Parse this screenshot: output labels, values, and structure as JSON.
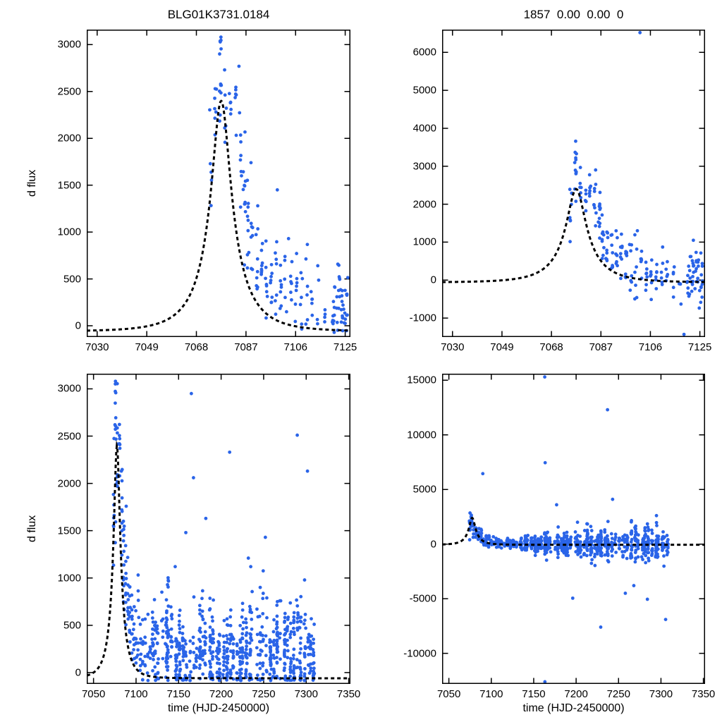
{
  "chart_data": [
    {
      "id": "top-left",
      "type": "scatter",
      "title": "BLG01K3731.0184",
      "xlabel": "",
      "ylabel": "d flux",
      "xlim": [
        7026,
        7127
      ],
      "ylim": [
        -120,
        3160
      ],
      "xticks": [
        7030,
        7049,
        7068,
        7087,
        7106,
        7125
      ],
      "yticks": [
        0,
        500,
        1000,
        1500,
        2000,
        2500,
        3000
      ],
      "point_color": "#2a64e8",
      "curve_color": "#000000",
      "curve_style": "dashed",
      "legend": "none",
      "grid": false,
      "model": {
        "type": "paczynski",
        "t0": 7077.5,
        "tE": 15,
        "u0": 0.25,
        "fs": 795,
        "fb": -60,
        "peak_flux": 2400
      },
      "seed": 7,
      "clamp": [
        -85,
        3085
      ],
      "clusters": [
        [
          7073.6,
          0.5,
          5,
          1650,
          280
        ],
        [
          7075.3,
          0.4,
          7,
          2150,
          350
        ],
        [
          7077.2,
          0.4,
          11,
          2620,
          290
        ],
        [
          7079.1,
          0.4,
          6,
          2250,
          280
        ],
        [
          7081.0,
          0.4,
          5,
          2330,
          180
        ],
        [
          7083.0,
          0.4,
          6,
          2480,
          140
        ],
        [
          7084.8,
          0.5,
          9,
          1950,
          320
        ],
        [
          7086.3,
          0.5,
          11,
          1500,
          430
        ],
        [
          7087.8,
          0.4,
          9,
          1080,
          300
        ],
        [
          7089.3,
          0.4,
          8,
          960,
          260
        ],
        [
          7091.2,
          0.4,
          8,
          780,
          250
        ],
        [
          7093.0,
          0.4,
          8,
          620,
          240
        ],
        [
          7094.8,
          0.4,
          8,
          530,
          250
        ],
        [
          7096.6,
          0.4,
          8,
          470,
          270
        ],
        [
          7098.4,
          0.4,
          7,
          430,
          300
        ],
        [
          7100.2,
          0.4,
          7,
          380,
          230
        ],
        [
          7102.2,
          0.4,
          5,
          560,
          300
        ],
        [
          7104.2,
          0.4,
          6,
          300,
          200
        ],
        [
          7106.2,
          0.4,
          7,
          280,
          210
        ],
        [
          7108.2,
          0.4,
          6,
          260,
          180
        ],
        [
          7110.2,
          0.4,
          6,
          300,
          220
        ],
        [
          7112.2,
          0.4,
          5,
          200,
          160
        ],
        [
          7114.6,
          0.4,
          4,
          240,
          190
        ],
        [
          7117.0,
          0.4,
          4,
          160,
          130
        ],
        [
          7120.6,
          0.7,
          11,
          250,
          200
        ],
        [
          7122.2,
          0.7,
          12,
          270,
          215
        ],
        [
          7123.8,
          0.7,
          12,
          245,
          200
        ],
        [
          7125.3,
          0.7,
          12,
          225,
          195
        ]
      ],
      "outliers": [
        [
          7077.4,
          3080
        ],
        [
          7076.9,
          2900
        ],
        [
          7099.0,
          1450
        ],
        [
          7103.3,
          930
        ],
        [
          7091.5,
          1280
        ]
      ]
    },
    {
      "id": "top-right",
      "type": "scatter",
      "title": "1857  0.00  0.00  0",
      "xlabel": "",
      "ylabel": "",
      "xlim": [
        7026,
        7127
      ],
      "ylim": [
        -1500,
        6600
      ],
      "xticks": [
        7030,
        7049,
        7068,
        7087,
        7106,
        7125
      ],
      "yticks": [
        -1000,
        0,
        1000,
        2000,
        3000,
        4000,
        5000,
        6000
      ],
      "point_color": "#2a64e8",
      "curve_color": "#000000",
      "curve_style": "dashed",
      "legend": "none",
      "grid": false,
      "model": {
        "type": "paczynski",
        "t0": 7077.5,
        "tE": 15,
        "u0": 0.25,
        "fs": 795,
        "fb": -60,
        "peak_flux": 2400
      },
      "seed": 23,
      "clamp": [
        -1460,
        6560
      ],
      "clusters": [
        [
          7075.4,
          0.4,
          7,
          2350,
          450
        ],
        [
          7077.2,
          0.4,
          11,
          2950,
          380
        ],
        [
          7079.1,
          0.4,
          6,
          2400,
          350
        ],
        [
          7081.0,
          0.4,
          5,
          2450,
          220
        ],
        [
          7083.0,
          0.4,
          6,
          2500,
          200
        ],
        [
          7084.8,
          0.5,
          9,
          2000,
          380
        ],
        [
          7086.3,
          0.5,
          11,
          1550,
          450
        ],
        [
          7087.8,
          0.4,
          9,
          1150,
          350
        ],
        [
          7089.3,
          0.4,
          8,
          1000,
          300
        ],
        [
          7091.2,
          0.4,
          8,
          800,
          300
        ],
        [
          7093.0,
          0.4,
          8,
          620,
          280
        ],
        [
          7094.8,
          0.4,
          8,
          520,
          300
        ],
        [
          7096.6,
          0.4,
          8,
          450,
          320
        ],
        [
          7098.4,
          0.4,
          7,
          420,
          380
        ],
        [
          7100.4,
          0.4,
          7,
          500,
          550
        ],
        [
          7102.4,
          0.4,
          6,
          300,
          300
        ],
        [
          7104.4,
          0.4,
          7,
          160,
          280
        ],
        [
          7106.4,
          0.4,
          7,
          130,
          300
        ],
        [
          7108.4,
          0.4,
          6,
          80,
          280
        ],
        [
          7110.4,
          0.4,
          6,
          130,
          320
        ],
        [
          7112.4,
          0.4,
          5,
          20,
          240
        ],
        [
          7115.0,
          0.4,
          5,
          90,
          330
        ],
        [
          7117.4,
          0.4,
          4,
          -80,
          260
        ],
        [
          7120.6,
          0.7,
          11,
          90,
          330
        ],
        [
          7122.2,
          0.7,
          12,
          90,
          380
        ],
        [
          7123.8,
          0.7,
          12,
          40,
          380
        ],
        [
          7125.3,
          0.7,
          12,
          10,
          420
        ]
      ],
      "outliers": [
        [
          7102.0,
          6520
        ],
        [
          7077.3,
          3660
        ],
        [
          7118.9,
          -1430
        ],
        [
          7101.0,
          1300
        ],
        [
          7122.5,
          1050
        ]
      ]
    },
    {
      "id": "bottom-left",
      "type": "scatter",
      "title": "",
      "xlabel": "time (HJD-2450000)",
      "ylabel": "d flux",
      "xlim": [
        7042,
        7352
      ],
      "ylim": [
        -120,
        3160
      ],
      "xticks": [
        7050,
        7100,
        7150,
        7200,
        7250,
        7300,
        7350
      ],
      "yticks": [
        0,
        500,
        1000,
        1500,
        2000,
        2500,
        3000
      ],
      "point_color": "#2a64e8",
      "curve_color": "#000000",
      "curve_style": "dashed",
      "legend": "none",
      "grid": false,
      "model": {
        "type": "paczynski",
        "t0": 7077.5,
        "tE": 15,
        "u0": 0.25,
        "fs": 795,
        "fb": -60,
        "peak_flux": 2400
      },
      "seed": 101,
      "clamp": [
        -85,
        3085
      ],
      "clusters": [
        [
          7073.8,
          0.5,
          8,
          1850,
          420
        ],
        [
          7076.0,
          0.5,
          12,
          2480,
          380
        ],
        [
          7078.2,
          0.5,
          8,
          2200,
          350
        ],
        [
          7080.6,
          0.5,
          7,
          2300,
          220
        ],
        [
          7083.2,
          0.6,
          9,
          1950,
          350
        ],
        [
          7085.6,
          0.6,
          12,
          1400,
          450
        ],
        [
          7088.0,
          0.6,
          10,
          1000,
          320
        ],
        [
          7090.4,
          0.6,
          9,
          780,
          280
        ],
        [
          7092.8,
          0.6,
          9,
          600,
          260
        ],
        [
          7095.2,
          0.6,
          8,
          480,
          280
        ],
        [
          7097.6,
          0.6,
          8,
          420,
          290
        ],
        [
          7100.0,
          0.6,
          7,
          380,
          260
        ],
        [
          7102.6,
          0.6,
          7,
          420,
          320
        ],
        [
          7105.2,
          0.6,
          7,
          280,
          220
        ],
        [
          7108.0,
          0.6,
          7,
          260,
          215
        ],
        [
          7110.8,
          0.6,
          6,
          280,
          225
        ],
        [
          7113.6,
          0.6,
          5,
          220,
          180
        ],
        [
          7116.4,
          0.6,
          5,
          180,
          160
        ],
        [
          7119.5,
          0.9,
          14,
          235,
          210
        ],
        [
          7122.5,
          0.9,
          16,
          235,
          210
        ],
        [
          7125.5,
          0.9,
          14,
          220,
          200
        ]
      ],
      "band": {
        "x0": 7131,
        "x1": 7309,
        "nights": 46,
        "night_w": 0.85,
        "nmin": 6,
        "nmax": 28,
        "y": 255,
        "ys": 250,
        "ymin": -85,
        "ymax": 1620
      },
      "outliers": [
        [
          7075.8,
          3080
        ],
        [
          7075.2,
          2620
        ],
        [
          7165.0,
          2950
        ],
        [
          7167.5,
          2060
        ],
        [
          7210.0,
          2330
        ],
        [
          7289.5,
          2510
        ],
        [
          7301.5,
          2130
        ],
        [
          7182.0,
          1630
        ],
        [
          7158.5,
          1480
        ],
        [
          7146.0,
          1120
        ],
        [
          7252.0,
          1430
        ],
        [
          7232.0,
          1210
        ]
      ]
    },
    {
      "id": "bottom-right",
      "type": "scatter",
      "title": "",
      "xlabel": "time (HJD-2450000)",
      "ylabel": "",
      "xlim": [
        7042,
        7352
      ],
      "ylim": [
        -12800,
        15600
      ],
      "xticks": [
        7050,
        7100,
        7150,
        7200,
        7250,
        7300,
        7350
      ],
      "yticks": [
        -10000,
        -5000,
        0,
        5000,
        10000,
        15000
      ],
      "point_color": "#2a64e8",
      "curve_color": "#000000",
      "curve_style": "dashed",
      "legend": "none",
      "grid": false,
      "model": {
        "type": "paczynski",
        "t0": 7077.5,
        "tE": 15,
        "u0": 0.25,
        "fs": 795,
        "fb": -60,
        "peak_flux": 2400
      },
      "seed": 2024,
      "clamp": [
        -12700,
        15400
      ],
      "clusters": [
        [
          7074.5,
          0.5,
          9,
          1700,
          600
        ],
        [
          7076.5,
          0.5,
          10,
          2150,
          500
        ],
        [
          7079.0,
          0.5,
          8,
          1500,
          450
        ],
        [
          7082.0,
          0.6,
          8,
          1100,
          380
        ],
        [
          7085.0,
          0.6,
          10,
          800,
          380
        ],
        [
          7088.0,
          0.6,
          8,
          600,
          300
        ],
        [
          7091.0,
          0.6,
          8,
          430,
          300
        ],
        [
          7094.0,
          0.6,
          8,
          330,
          290
        ],
        [
          7097.0,
          0.6,
          8,
          240,
          290
        ],
        [
          7100.0,
          0.6,
          7,
          190,
          280
        ],
        [
          7103.0,
          0.6,
          7,
          150,
          260
        ],
        [
          7106.0,
          0.6,
          7,
          120,
          260
        ],
        [
          7109.0,
          0.6,
          6,
          100,
          255
        ],
        [
          7112.0,
          0.6,
          6,
          80,
          255
        ],
        [
          7115.5,
          0.6,
          5,
          60,
          255
        ],
        [
          7119.0,
          0.9,
          12,
          50,
          260
        ],
        [
          7122.5,
          0.9,
          14,
          40,
          265
        ],
        [
          7126.0,
          0.9,
          12,
          30,
          265
        ]
      ],
      "band": {
        "x0": 7131,
        "x1": 7309,
        "nights": 46,
        "night_w": 0.85,
        "nmin": 6,
        "nmax": 28,
        "y": 0,
        "ys": 330,
        "ys_end": 750,
        "ymin": -5600,
        "ymax": 5600
      },
      "outliers": [
        [
          7163.0,
          15300
        ],
        [
          7237.0,
          12300
        ],
        [
          7163.5,
          7450
        ],
        [
          7090.0,
          6450
        ],
        [
          7229.0,
          -7600
        ],
        [
          7163.2,
          -12600
        ],
        [
          7196.0,
          -4950
        ],
        [
          7284.0,
          -5050
        ],
        [
          7305.5,
          -6900
        ],
        [
          7258.0,
          -4500
        ],
        [
          7177.0,
          3600
        ],
        [
          7243.0,
          4100
        ],
        [
          7268.0,
          -3800
        ]
      ]
    }
  ]
}
